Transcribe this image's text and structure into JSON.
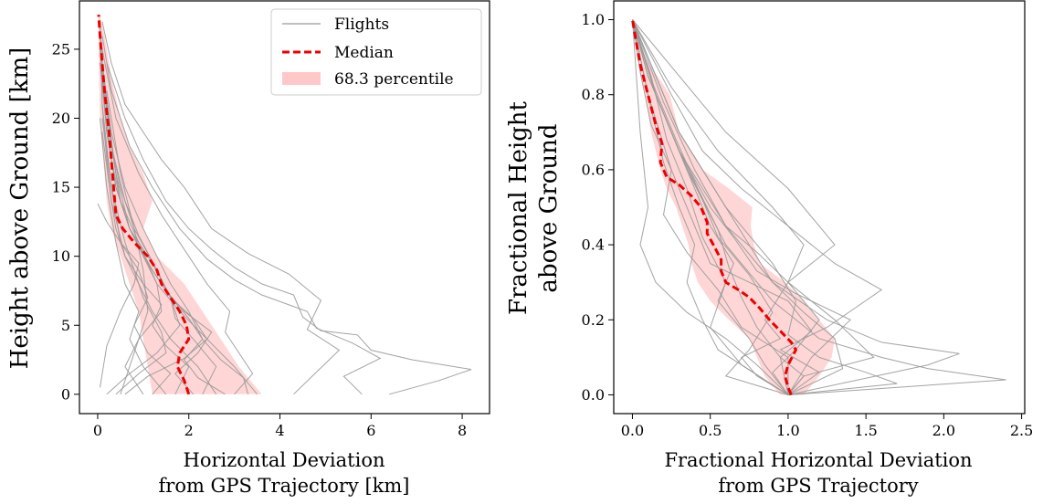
{
  "colors": {
    "flights": "#999999",
    "median": "#ee0000",
    "band": "#ffc8c8"
  },
  "legend": {
    "flights": "Flights",
    "median": "Median",
    "band": "68.3 percentile",
    "placement": "top-right"
  },
  "chart_data": [
    {
      "type": "line",
      "ylabel": "Height above Ground [km]",
      "xlabel": [
        "Horizontal Deviation",
        "from GPS Trajectory [km]"
      ],
      "xlim": [
        -0.4,
        8.6
      ],
      "ylim": [
        -1.4,
        28.5
      ],
      "xticks": [
        0,
        2,
        4,
        6,
        8
      ],
      "yticks": [
        0,
        5,
        10,
        15,
        20,
        25
      ],
      "grid": false,
      "median": {
        "x": [
          2.0,
          1.9,
          1.75,
          1.8,
          2.0,
          1.95,
          1.8,
          1.6,
          1.4,
          1.3,
          1.1,
          0.8,
          0.55,
          0.4,
          0.35,
          0.3,
          0.25,
          0.15,
          0.1,
          0.05,
          0.02
        ],
        "y": [
          0,
          1,
          2,
          3,
          4,
          5,
          6,
          7,
          8,
          9,
          10,
          11,
          12,
          13,
          15,
          17,
          19,
          22,
          24,
          26,
          27.5
        ]
      },
      "band": {
        "y": [
          0,
          2,
          4,
          6,
          8,
          10,
          12,
          14,
          16,
          18,
          20,
          23,
          26,
          27.5
        ],
        "low": [
          1.2,
          1.1,
          1.0,
          0.9,
          0.7,
          0.5,
          0.3,
          0.2,
          0.15,
          0.1,
          0.05,
          0.03,
          0.02,
          0.01
        ],
        "high": [
          3.6,
          3.1,
          2.7,
          2.3,
          1.9,
          1.3,
          1.0,
          1.2,
          1.0,
          0.7,
          0.5,
          0.3,
          0.15,
          0.05
        ]
      },
      "flights": [
        {
          "x": [
            2.6,
            2.2,
            1.6,
            1.2,
            0.9,
            0.6,
            0.4,
            0.3,
            0.2,
            0.1,
            0.05
          ],
          "y": [
            0,
            2,
            4,
            6,
            8,
            10,
            12,
            14,
            17,
            21,
            27
          ]
        },
        {
          "x": [
            3.5,
            3.0,
            2.4,
            1.8,
            1.3,
            1.0,
            0.7,
            0.5,
            0.3,
            0.15,
            0.05
          ],
          "y": [
            0,
            2,
            4,
            6,
            8,
            10,
            12,
            14,
            17,
            21,
            27
          ]
        },
        {
          "x": [
            0.5,
            0.8,
            1.1,
            1.0,
            0.8,
            0.5,
            0.3,
            0.15,
            0.05
          ],
          "y": [
            0,
            3,
            6,
            9,
            12,
            15,
            18,
            22,
            26
          ]
        },
        {
          "x": [
            1.0,
            0.6,
            0.9,
            1.4,
            1.3,
            0.9,
            0.5,
            0.3,
            0.1
          ],
          "y": [
            0,
            2,
            4,
            6,
            8,
            11,
            14,
            18,
            24
          ]
        },
        {
          "x": [
            4.3,
            4.8,
            5.3,
            4.6,
            4.9,
            4.2,
            3.3,
            2.5,
            1.9,
            1.4,
            1.0,
            0.6,
            0.3,
            0.1
          ],
          "y": [
            0,
            1.6,
            3.2,
            4.7,
            6.8,
            8.7,
            10.2,
            12,
            15,
            17,
            19,
            21,
            24,
            27
          ]
        },
        {
          "x": [
            6.4,
            7.5,
            8.2,
            6.9,
            6.0,
            5.7,
            4.9,
            4.5,
            4.3,
            3.6,
            3.0,
            2.5,
            2.0,
            1.5,
            1.0,
            0.6,
            0.2
          ],
          "y": [
            0,
            1.0,
            1.8,
            2.5,
            3.2,
            4.3,
            4.6,
            5.6,
            7.2,
            8.0,
            9.2,
            10.5,
            12,
            14,
            17,
            20,
            24
          ]
        },
        {
          "x": [
            5.8,
            5.4,
            6.2,
            5.6,
            4.8,
            4.6,
            3.6,
            3.0,
            2.4,
            1.8,
            1.2,
            0.7,
            0.3,
            0.1
          ],
          "y": [
            0,
            1.3,
            2.6,
            3.7,
            4.8,
            6.0,
            7.2,
            8.3,
            9.8,
            12,
            15,
            18,
            22,
            26
          ]
        },
        {
          "x": [
            3.0,
            3.4,
            3.1,
            2.8,
            2.9,
            2.4,
            2.0,
            1.4,
            0.9,
            0.4,
            0.1
          ],
          "y": [
            0,
            1.5,
            3,
            4.5,
            6,
            8,
            10,
            13,
            16,
            20,
            25
          ]
        },
        {
          "x": [
            2.3,
            2.6,
            2.1,
            1.7,
            1.6,
            1.3,
            0.8,
            0.5,
            0.2
          ],
          "y": [
            0,
            2,
            4,
            5.5,
            7,
            9,
            12,
            16,
            22
          ]
        },
        {
          "x": [
            1.7,
            2.0,
            1.5,
            1.2,
            1.4,
            1.0,
            0.6,
            0.3,
            0.1
          ],
          "y": [
            0,
            2,
            3.5,
            5,
            6.5,
            8,
            10,
            14,
            19
          ]
        },
        {
          "x": [
            0.4,
            0.9,
            1.5,
            1.4,
            1.0,
            0.8,
            0.6,
            0.3,
            0.1
          ],
          "y": [
            0,
            1.5,
            3,
            4.5,
            7,
            9,
            11,
            15,
            20
          ]
        },
        {
          "x": [
            2.8,
            2.2,
            1.9,
            2.3,
            2.0,
            1.6,
            1.3,
            1.0,
            0.6,
            0.3,
            0.1
          ],
          "y": [
            0,
            1.2,
            2.5,
            4,
            6,
            8,
            10,
            12,
            15,
            19,
            24
          ]
        },
        {
          "x": [
            0.2,
            0.7,
            1.3,
            1.8,
            1.6,
            1.2,
            0.7,
            0.4,
            0.2,
            0.05
          ],
          "y": [
            0,
            1.5,
            3,
            5,
            7,
            9.5,
            12,
            15,
            19,
            24
          ]
        },
        {
          "x": [
            1.2,
            1.6,
            1.1,
            0.8,
            1.1,
            0.9,
            0.5,
            0.3,
            0.1
          ],
          "y": [
            0,
            1.5,
            3,
            5,
            7,
            9,
            11,
            15,
            21
          ]
        },
        {
          "x": [
            2.1,
            1.7,
            2.2,
            2.5,
            1.9,
            1.5,
            1.1,
            0.7,
            0.4,
            0.2,
            0.05
          ],
          "y": [
            0,
            1.5,
            3,
            4.5,
            6,
            7.5,
            9.5,
            12,
            15,
            19,
            25
          ]
        },
        {
          "x": [
            3.3,
            3.2,
            2.7,
            2.3,
            2.0,
            1.6,
            1.3,
            0.9,
            0.6,
            0.3,
            0.1
          ],
          "y": [
            0,
            1.2,
            2.5,
            4,
            5.5,
            7,
            9,
            11.5,
            14,
            18,
            23
          ]
        },
        {
          "x": [
            1.5,
            1.0,
            0.7,
            0.9,
            0.6,
            0.4,
            0.2,
            0.05
          ],
          "y": [
            0,
            2,
            4,
            6,
            8,
            11,
            15,
            20
          ]
        },
        {
          "x": [
            0.0,
            0.2,
            0.5,
            0.9,
            0.8,
            0.5,
            0.2,
            0.05
          ],
          "y": [
            13.8,
            12.5,
            11,
            9.5,
            8,
            6,
            3.5,
            0.5
          ]
        },
        {
          "x": [
            0.6,
            1.1,
            1.9,
            2.4,
            2.1,
            1.6,
            1.2,
            0.7,
            0.4,
            0.2
          ],
          "y": [
            0,
            1.3,
            2.6,
            4,
            5.5,
            7,
            9,
            12,
            16,
            21
          ]
        }
      ]
    },
    {
      "type": "line",
      "ylabel": [
        "Fractional Height",
        "above Ground"
      ],
      "xlabel": [
        "Fractional Horizontal Deviation",
        "from GPS Trajectory"
      ],
      "xlim": [
        -0.12,
        2.52
      ],
      "ylim": [
        -0.05,
        1.05
      ],
      "xticks": [
        0.0,
        0.5,
        1.0,
        1.5,
        2.0,
        2.5
      ],
      "yticks": [
        0.0,
        0.2,
        0.4,
        0.6,
        0.8,
        1.0
      ],
      "grid": false,
      "median": {
        "x": [
          1.02,
          1.0,
          0.98,
          1.0,
          1.05,
          1.02,
          0.95,
          0.88,
          0.82,
          0.75,
          0.68,
          0.6,
          0.57,
          0.57,
          0.52,
          0.48,
          0.48,
          0.44,
          0.38,
          0.3,
          0.22,
          0.18,
          0.19,
          0.15,
          0.1,
          0.05,
          0.02,
          0.0
        ],
        "y": [
          0.0,
          0.02,
          0.05,
          0.08,
          0.12,
          0.14,
          0.17,
          0.2,
          0.23,
          0.26,
          0.28,
          0.3,
          0.33,
          0.36,
          0.4,
          0.43,
          0.46,
          0.5,
          0.53,
          0.56,
          0.58,
          0.62,
          0.67,
          0.72,
          0.8,
          0.88,
          0.95,
          1.0
        ]
      },
      "band": {
        "y": [
          0.0,
          0.05,
          0.1,
          0.15,
          0.2,
          0.25,
          0.3,
          0.35,
          0.4,
          0.45,
          0.5,
          0.55,
          0.6,
          0.7,
          0.8,
          0.9,
          1.0
        ],
        "low": [
          0.95,
          0.85,
          0.8,
          0.75,
          0.62,
          0.5,
          0.42,
          0.38,
          0.36,
          0.32,
          0.28,
          0.22,
          0.18,
          0.12,
          0.08,
          0.03,
          0.0
        ],
        "high": [
          1.1,
          1.2,
          1.28,
          1.3,
          1.2,
          1.1,
          0.98,
          0.82,
          0.78,
          0.76,
          0.77,
          0.62,
          0.45,
          0.3,
          0.24,
          0.08,
          0.0
        ]
      },
      "flights": [
        {
          "x": [
            1.0,
            1.35,
            1.3,
            1.1,
            0.9,
            0.75,
            0.6,
            0.45,
            0.3,
            0.15,
            0.0
          ],
          "y": [
            0.0,
            0.07,
            0.15,
            0.22,
            0.3,
            0.4,
            0.5,
            0.6,
            0.7,
            0.85,
            1.0
          ]
        },
        {
          "x": [
            1.0,
            2.4,
            1.9,
            1.6,
            1.2,
            0.9,
            0.6,
            0.35,
            0.15,
            0.0
          ],
          "y": [
            0.0,
            0.04,
            0.07,
            0.1,
            0.15,
            0.25,
            0.4,
            0.6,
            0.8,
            1.0
          ]
        },
        {
          "x": [
            1.0,
            1.9,
            2.1,
            1.6,
            1.25,
            0.9,
            0.6,
            0.3,
            0.1,
            0.0
          ],
          "y": [
            0.0,
            0.08,
            0.11,
            0.14,
            0.2,
            0.3,
            0.45,
            0.65,
            0.85,
            1.0
          ]
        },
        {
          "x": [
            1.0,
            1.15,
            1.4,
            1.05,
            0.8,
            0.65,
            0.5,
            0.3,
            0.15,
            0.0
          ],
          "y": [
            0.0,
            0.1,
            0.2,
            0.27,
            0.33,
            0.42,
            0.5,
            0.65,
            0.8,
            1.0
          ]
        },
        {
          "x": [
            1.0,
            0.55,
            0.45,
            0.35,
            0.4,
            0.3,
            0.2,
            0.1,
            0.0
          ],
          "y": [
            0.0,
            0.12,
            0.2,
            0.3,
            0.4,
            0.5,
            0.62,
            0.8,
            1.0
          ]
        },
        {
          "x": [
            1.0,
            0.8,
            0.6,
            0.35,
            0.15,
            0.05,
            0.1,
            0.05,
            0.0
          ],
          "y": [
            0.0,
            0.08,
            0.15,
            0.22,
            0.3,
            0.4,
            0.5,
            0.7,
            1.0
          ]
        },
        {
          "x": [
            1.0,
            1.1,
            1.55,
            1.3,
            1.0,
            0.8,
            0.6,
            0.4,
            0.2,
            0.0
          ],
          "y": [
            0.0,
            0.05,
            0.1,
            0.2,
            0.3,
            0.38,
            0.45,
            0.6,
            0.78,
            1.0
          ]
        },
        {
          "x": [
            1.0,
            1.2,
            0.95,
            1.25,
            1.6,
            1.3,
            1.0,
            0.7,
            0.45,
            0.25,
            0.0
          ],
          "y": [
            0.0,
            0.06,
            0.12,
            0.18,
            0.28,
            0.35,
            0.45,
            0.55,
            0.65,
            0.8,
            1.0
          ]
        },
        {
          "x": [
            1.0,
            0.9,
            1.05,
            1.2,
            1.0,
            1.3,
            1.0,
            0.6,
            0.3,
            0.0
          ],
          "y": [
            0.0,
            0.06,
            0.12,
            0.2,
            0.3,
            0.4,
            0.55,
            0.7,
            0.85,
            1.0
          ]
        },
        {
          "x": [
            1.0,
            0.8,
            0.7,
            0.95,
            0.85,
            1.0,
            1.1,
            0.9,
            0.55,
            0.25,
            0.0
          ],
          "y": [
            0.0,
            0.05,
            0.1,
            0.15,
            0.2,
            0.3,
            0.4,
            0.5,
            0.65,
            0.82,
            1.0
          ]
        },
        {
          "x": [
            1.0,
            0.6,
            0.75,
            0.9,
            0.75,
            0.55,
            0.45,
            0.3,
            0.15,
            0.0
          ],
          "y": [
            0.0,
            0.05,
            0.12,
            0.22,
            0.32,
            0.42,
            0.52,
            0.65,
            0.8,
            1.0
          ]
        },
        {
          "x": [
            1.0,
            1.0,
            0.7,
            0.55,
            0.35,
            0.2,
            0.25,
            0.12,
            0.05,
            0.0
          ],
          "y": [
            0.0,
            0.1,
            0.18,
            0.28,
            0.38,
            0.48,
            0.6,
            0.72,
            0.86,
            1.0
          ]
        },
        {
          "x": [
            1.0,
            1.7,
            1.5,
            1.2,
            1.0,
            1.05,
            0.9,
            0.6,
            0.3,
            0.0
          ],
          "y": [
            0.0,
            0.03,
            0.06,
            0.1,
            0.16,
            0.25,
            0.35,
            0.5,
            0.7,
            1.0
          ]
        },
        {
          "x": [
            1.0,
            0.85,
            0.75,
            0.55,
            0.65,
            0.5,
            0.4,
            0.25,
            0.1,
            0.0
          ],
          "y": [
            0.0,
            0.08,
            0.15,
            0.25,
            0.35,
            0.45,
            0.55,
            0.7,
            0.85,
            1.0
          ]
        },
        {
          "x": [
            1.0,
            1.1,
            0.95,
            0.8,
            0.7,
            0.62,
            0.55,
            0.42,
            0.28,
            0.12,
            0.0
          ],
          "y": [
            0.0,
            0.05,
            0.1,
            0.18,
            0.26,
            0.34,
            0.44,
            0.55,
            0.68,
            0.84,
            1.0
          ]
        },
        {
          "x": [
            1.0,
            0.95,
            1.15,
            1.0,
            0.75,
            0.5,
            0.4,
            0.25,
            0.1,
            0.0
          ],
          "y": [
            0.0,
            0.1,
            0.17,
            0.25,
            0.3,
            0.35,
            0.45,
            0.6,
            0.8,
            1.0
          ]
        },
        {
          "x": [
            1.0,
            0.7,
            0.5,
            0.6,
            0.45,
            0.35,
            0.22,
            0.12,
            0.0
          ],
          "y": [
            0.0,
            0.08,
            0.18,
            0.3,
            0.42,
            0.55,
            0.68,
            0.85,
            1.0
          ]
        }
      ]
    }
  ]
}
